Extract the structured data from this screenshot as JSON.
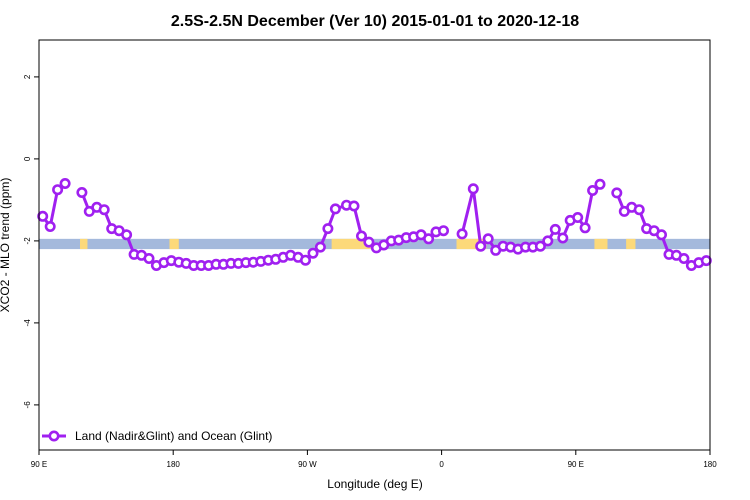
{
  "chart_data": {
    "type": "line",
    "title": "2.5S-2.5N December (Ver 10)   2015-01-01 to 2020-12-18",
    "xlabel": "Longitude (deg E)",
    "ylabel": "XCO2 - MLO trend (ppm)",
    "xlim": [
      0,
      360
    ],
    "ylim": [
      -7.1,
      2.9
    ],
    "x_ticks": [
      {
        "pos": 0,
        "label": "90 E"
      },
      {
        "pos": 72,
        "label": "180"
      },
      {
        "pos": 144,
        "label": "90 W"
      },
      {
        "pos": 216,
        "label": "0"
      },
      {
        "pos": 288,
        "label": "90 E"
      },
      {
        "pos": 360,
        "label": "180"
      }
    ],
    "y_ticks": [
      2,
      0,
      -2,
      -4,
      -6
    ],
    "legend_position": "bottom-left",
    "colors": {
      "series": "#a020f0",
      "ocean_band": "#a4b9dc",
      "land_band": "#fcd97a",
      "axis": "#000000"
    },
    "band": {
      "y_min": -2.2,
      "y_max": -1.95
    },
    "land_segments": [
      [
        22,
        26
      ],
      [
        70,
        75
      ],
      [
        157,
        178
      ],
      [
        224,
        240
      ],
      [
        298,
        305
      ],
      [
        315,
        320
      ]
    ],
    "series": [
      {
        "name": "Land (Nadir&Glint) and Ocean (Glint)",
        "segments": [
          [
            [
              2,
              -1.4
            ],
            [
              6,
              -1.65
            ],
            [
              10,
              -0.75
            ],
            [
              14,
              -0.6
            ]
          ],
          [
            [
              23,
              -0.82
            ],
            [
              27,
              -1.28
            ],
            [
              31,
              -1.18
            ],
            [
              35,
              -1.24
            ],
            [
              39,
              -1.7
            ],
            [
              43,
              -1.75
            ],
            [
              47,
              -1.85
            ],
            [
              51,
              -2.33
            ],
            [
              55,
              -2.35
            ],
            [
              59,
              -2.43
            ],
            [
              63,
              -2.6
            ],
            [
              67,
              -2.53
            ],
            [
              71,
              -2.48
            ],
            [
              75,
              -2.52
            ],
            [
              79,
              -2.55
            ],
            [
              83,
              -2.6
            ],
            [
              87,
              -2.6
            ],
            [
              91,
              -2.6
            ],
            [
              95,
              -2.57
            ],
            [
              99,
              -2.57
            ],
            [
              103,
              -2.55
            ],
            [
              107,
              -2.55
            ],
            [
              111,
              -2.53
            ],
            [
              115,
              -2.52
            ],
            [
              119,
              -2.5
            ],
            [
              123,
              -2.47
            ],
            [
              127,
              -2.45
            ],
            [
              131,
              -2.4
            ],
            [
              135,
              -2.35
            ],
            [
              139,
              -2.4
            ],
            [
              143,
              -2.47
            ],
            [
              147,
              -2.3
            ],
            [
              151,
              -2.15
            ],
            [
              155,
              -1.7
            ],
            [
              159,
              -1.22
            ],
            [
              165,
              -1.13
            ],
            [
              169,
              -1.15
            ],
            [
              173,
              -1.88
            ],
            [
              177,
              -2.03
            ],
            [
              181,
              -2.17
            ],
            [
              185,
              -2.1
            ],
            [
              189,
              -2.0
            ],
            [
              193,
              -1.98
            ],
            [
              197,
              -1.92
            ],
            [
              201,
              -1.9
            ],
            [
              205,
              -1.85
            ],
            [
              209,
              -1.95
            ],
            [
              213,
              -1.78
            ],
            [
              217,
              -1.75
            ]
          ],
          [
            [
              227,
              -1.83
            ],
            [
              233,
              -0.73
            ],
            [
              237,
              -2.13
            ],
            [
              241,
              -1.95
            ],
            [
              245,
              -2.23
            ],
            [
              249,
              -2.13
            ],
            [
              253,
              -2.15
            ],
            [
              257,
              -2.2
            ],
            [
              261,
              -2.15
            ],
            [
              265,
              -2.15
            ],
            [
              269,
              -2.13
            ],
            [
              273,
              -2.0
            ],
            [
              277,
              -1.72
            ],
            [
              281,
              -1.93
            ],
            [
              285,
              -1.5
            ],
            [
              289,
              -1.43
            ],
            [
              293,
              -1.68
            ],
            [
              297,
              -0.77
            ],
            [
              301,
              -0.62
            ]
          ],
          [
            [
              310,
              -0.83
            ],
            [
              314,
              -1.28
            ],
            [
              318,
              -1.18
            ],
            [
              322,
              -1.24
            ],
            [
              326,
              -1.7
            ],
            [
              330,
              -1.75
            ],
            [
              334,
              -1.85
            ],
            [
              338,
              -2.33
            ],
            [
              342,
              -2.35
            ],
            [
              346,
              -2.43
            ],
            [
              350,
              -2.6
            ],
            [
              354,
              -2.53
            ],
            [
              358,
              -2.48
            ]
          ]
        ]
      }
    ]
  }
}
